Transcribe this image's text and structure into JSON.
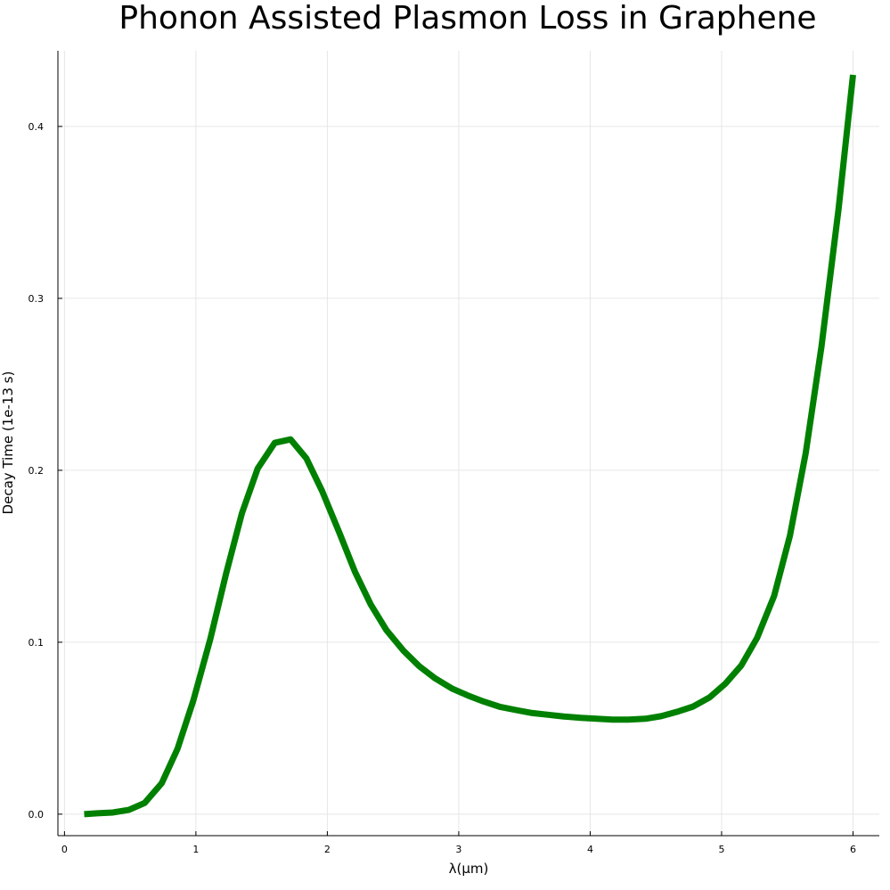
{
  "chart_data": {
    "type": "line",
    "title": "Phonon Assisted Plasmon Loss in Graphene",
    "xlabel": "λ(μm)",
    "ylabel": "Decay Time (1e-13 s)",
    "xlim": [
      -0.05,
      6.2
    ],
    "ylim": [
      -0.0125,
      0.444
    ],
    "xticks": [
      0,
      1,
      2,
      3,
      4,
      5,
      6
    ],
    "yticks": [
      0.0,
      0.1,
      0.2,
      0.3,
      0.4
    ],
    "xtick_labels": [
      "0",
      "1",
      "2",
      "3",
      "4",
      "5",
      "6"
    ],
    "ytick_labels": [
      "0.0",
      "0.1",
      "0.2",
      "0.3",
      "0.4"
    ],
    "grid": true,
    "legend": "none",
    "series": [
      {
        "color": "#008000",
        "x": [
          0.15,
          0.25,
          0.37,
          0.49,
          0.61,
          0.74,
          0.86,
          0.98,
          1.11,
          1.23,
          1.35,
          1.47,
          1.6,
          1.72,
          1.84,
          1.96,
          2.09,
          2.21,
          2.33,
          2.45,
          2.58,
          2.7,
          2.82,
          2.95,
          3.07,
          3.19,
          3.31,
          3.44,
          3.56,
          3.68,
          3.8,
          3.93,
          4.05,
          4.17,
          4.29,
          4.42,
          4.54,
          4.66,
          4.78,
          4.91,
          5.03,
          5.15,
          5.27,
          5.4,
          5.52,
          5.64,
          5.76,
          5.89,
          6.0
        ],
        "y": [
          0.0,
          0.0005,
          0.001,
          0.0025,
          0.0065,
          0.018,
          0.038,
          0.066,
          0.102,
          0.14,
          0.175,
          0.201,
          0.216,
          0.218,
          0.207,
          0.188,
          0.164,
          0.141,
          0.122,
          0.107,
          0.095,
          0.086,
          0.079,
          0.073,
          0.069,
          0.0655,
          0.0625,
          0.0605,
          0.0588,
          0.0578,
          0.0568,
          0.056,
          0.0555,
          0.055,
          0.055,
          0.0555,
          0.057,
          0.0595,
          0.0625,
          0.068,
          0.076,
          0.0865,
          0.1025,
          0.127,
          0.162,
          0.21,
          0.272,
          0.352,
          0.43
        ]
      }
    ]
  }
}
